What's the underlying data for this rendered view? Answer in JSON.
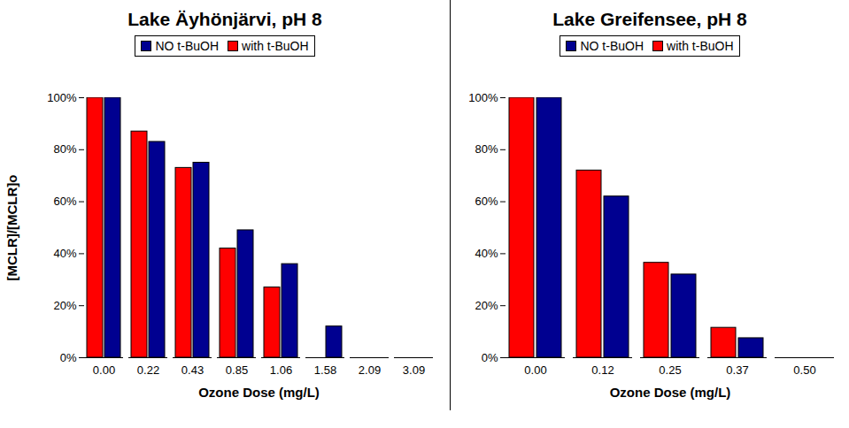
{
  "chart_data": [
    {
      "type": "bar",
      "title": "Lake Äyhönjärvi, pH 8",
      "xlabel": "Ozone Dose (mg/L)",
      "ylabel": "[MCLR]/[MCLR]o",
      "categories": [
        "0.00",
        "0.22",
        "0.43",
        "0.85",
        "1.06",
        "1.58",
        "2.09",
        "3.09"
      ],
      "series": [
        {
          "name": "NO t-BuOH",
          "color": "#000090",
          "values": [
            100,
            83,
            75,
            49,
            36,
            12,
            0,
            0
          ]
        },
        {
          "name": "with t-BuOH",
          "color": "#ff0000",
          "values": [
            100,
            87,
            73,
            42,
            27,
            0,
            0,
            0
          ]
        }
      ],
      "ylim": [
        0,
        100
      ],
      "yticks": [
        {
          "value": 0,
          "label": "0%"
        },
        {
          "value": 20,
          "label": "20%"
        },
        {
          "value": 40,
          "label": "40%"
        },
        {
          "value": 60,
          "label": "60%"
        },
        {
          "value": 80,
          "label": "80%"
        },
        {
          "value": 100,
          "label": "100%"
        }
      ],
      "grid": false,
      "legend": "top"
    },
    {
      "type": "bar",
      "title": "Lake Greifensee, pH 8",
      "xlabel": "Ozone Dose (mg/L)",
      "categories": [
        "0.00",
        "0.12",
        "0.25",
        "0.37",
        "0.50"
      ],
      "series": [
        {
          "name": "NO t-BuOH",
          "color": "#000090",
          "values": [
            100,
            62,
            32,
            7.5,
            0
          ]
        },
        {
          "name": "with t-BuOH",
          "color": "#ff0000",
          "values": [
            100,
            72,
            36.5,
            11.5,
            0
          ]
        }
      ],
      "ylim": [
        0,
        100
      ],
      "yticks": [
        {
          "value": 0,
          "label": "0%"
        },
        {
          "value": 20,
          "label": "20%"
        },
        {
          "value": 40,
          "label": "40%"
        },
        {
          "value": 60,
          "label": "60%"
        },
        {
          "value": 80,
          "label": "80%"
        },
        {
          "value": 100,
          "label": "100%"
        }
      ],
      "grid": false,
      "legend": "top"
    }
  ]
}
